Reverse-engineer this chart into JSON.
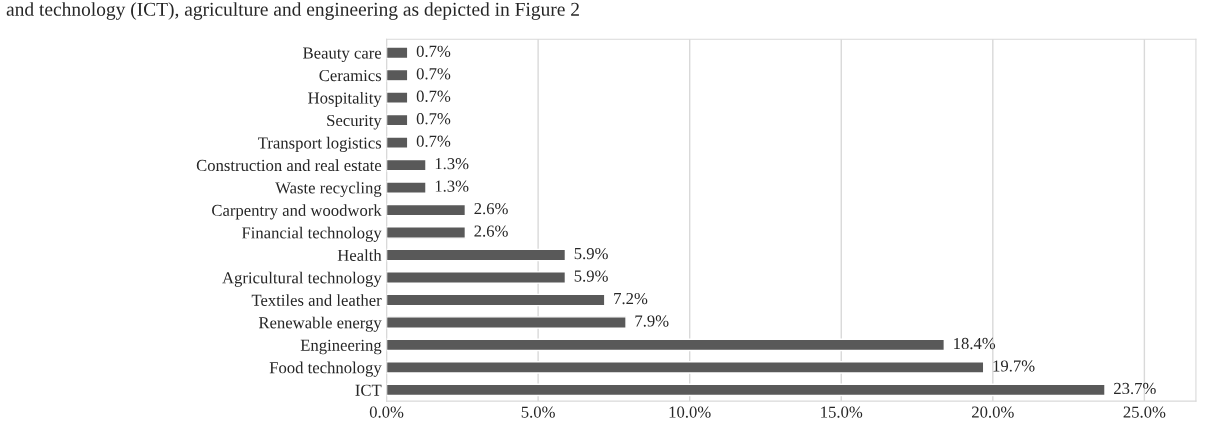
{
  "chart_data": {
    "type": "bar",
    "orientation": "horizontal",
    "annotations": [
      "and technology (ICT), agriculture and engineering as depicted in Figure 2"
    ],
    "categories": [
      "Beauty care",
      "Ceramics",
      "Hospitality",
      "Security",
      "Transport logistics",
      "Construction and real estate",
      "Waste recycling",
      "Carpentry and woodwork",
      "Financial technology",
      "Health",
      "Agricultural technology",
      "Textiles and leather",
      "Renewable energy",
      "Engineering",
      "Food technology",
      "ICT"
    ],
    "values": [
      0.7,
      0.7,
      0.7,
      0.7,
      0.7,
      1.3,
      1.3,
      2.6,
      2.6,
      5.9,
      5.9,
      7.2,
      7.9,
      18.4,
      19.7,
      23.7
    ],
    "value_labels": [
      "0.7%",
      "0.7%",
      "0.7%",
      "0.7%",
      "0.7%",
      "1.3%",
      "1.3%",
      "2.6%",
      "2.6%",
      "5.9%",
      "5.9%",
      "7.2%",
      "7.9%",
      "18.4%",
      "19.7%",
      "23.7%"
    ],
    "color": "#595959",
    "xlim": [
      0,
      26.7
    ],
    "xticks": [
      {
        "value": 0,
        "label": "0.0%"
      },
      {
        "value": 5,
        "label": "5.0%"
      },
      {
        "value": 10,
        "label": "10.0%"
      },
      {
        "value": 15,
        "label": "15.0%"
      },
      {
        "value": 20,
        "label": "20.0%"
      },
      {
        "value": 25,
        "label": "25.0%"
      }
    ],
    "grid": "x",
    "legend": false
  }
}
